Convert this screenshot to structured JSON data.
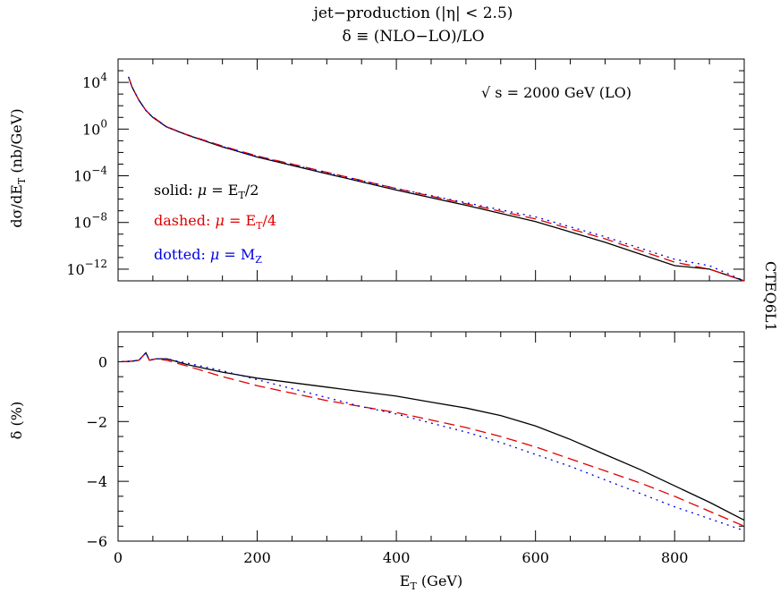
{
  "chart_data": [
    {
      "type": "line",
      "title_line1": "jet−production (|η| < 2.5)",
      "title_line2": "δ ≡ (NLO−LO)/LO",
      "ylabel": "dσ/dE",
      "ylabel_sub": "T",
      "ylabel_unit": " (nb/GeV)",
      "annotation": "√ s = 2000 GeV (LO)",
      "side_label": "CTEQ6L1",
      "yscale": "log",
      "xlim": [
        0,
        900
      ],
      "ylim": [
        1e-13,
        1000000.0
      ],
      "yticks": [
        {
          "value": 10000.0,
          "mant": "10",
          "exp": "4"
        },
        {
          "value": 1.0,
          "mant": "10",
          "exp": "0"
        },
        {
          "value": 0.0001,
          "mant": "10",
          "exp": "−4"
        },
        {
          "value": 1e-08,
          "mant": "10",
          "exp": "−8"
        },
        {
          "value": 1e-12,
          "mant": "10",
          "exp": "−12"
        }
      ],
      "legend": [
        {
          "prefix": "solid: ",
          "mu": "μ",
          "eq": " = E",
          "sub": "T",
          "suffix": "/2",
          "color": "#000000"
        },
        {
          "prefix": "dashed: ",
          "mu": "μ",
          "eq": " = E",
          "sub": "T",
          "suffix": "/4",
          "color": "#e00000"
        },
        {
          "prefix": "dotted: ",
          "mu": "μ",
          "eq": " = M",
          "sub": "Z",
          "suffix": "",
          "color": "#0000e0"
        }
      ],
      "series": [
        {
          "style": "solid",
          "color": "#000000",
          "x": [
            15,
            20,
            30,
            40,
            50,
            70,
            100,
            150,
            200,
            300,
            400,
            500,
            600,
            700,
            800,
            850,
            900
          ],
          "y": [
            30000.0,
            4000,
            300,
            40,
            10,
            1.5,
            0.3,
            0.03,
            0.004,
            0.00015,
            6e-06,
            3e-07,
            1.2e-08,
            2e-10,
            2e-12,
            1e-12,
            4e-14
          ]
        },
        {
          "style": "dashed",
          "color": "#e00000",
          "x": [
            15,
            20,
            30,
            40,
            50,
            70,
            100,
            150,
            200,
            300,
            400,
            500,
            600,
            700,
            800,
            850,
            900
          ],
          "y": [
            30000.0,
            4000,
            300,
            40,
            11,
            1.6,
            0.32,
            0.035,
            0.005,
            0.0002,
            8e-06,
            4e-07,
            2e-08,
            4e-10,
            4e-12,
            1e-12,
            4e-14
          ]
        },
        {
          "style": "dotted",
          "color": "#0000e0",
          "x": [
            15,
            20,
            30,
            40,
            50,
            70,
            100,
            150,
            200,
            300,
            400,
            500,
            600,
            700,
            800,
            850,
            900
          ],
          "y": [
            30000.0,
            4000,
            300,
            40,
            10,
            1.5,
            0.3,
            0.032,
            0.0045,
            0.00018,
            8e-06,
            5e-07,
            3e-08,
            6e-10,
            7e-12,
            2e-12,
            6e-14
          ]
        }
      ]
    },
    {
      "type": "line",
      "xlabel": "E",
      "xlabel_sub": "T",
      "xlabel_unit": " (GeV)",
      "ylabel": "δ (%)",
      "xlim": [
        0,
        900
      ],
      "ylim": [
        -6,
        1
      ],
      "xticks": [
        0,
        200,
        400,
        600,
        800
      ],
      "xtick_labels": [
        "0",
        "200",
        "400",
        "600",
        "800"
      ],
      "yticks": [
        0,
        -2,
        -4,
        -6
      ],
      "ytick_labels": [
        "0",
        "−2",
        "−4",
        "−6"
      ],
      "series": [
        {
          "style": "solid",
          "color": "#000000",
          "x": [
            5,
            20,
            30,
            40,
            45,
            55,
            70,
            100,
            150,
            200,
            250,
            300,
            350,
            400,
            450,
            500,
            550,
            600,
            650,
            700,
            750,
            800,
            850,
            900
          ],
          "y": [
            0,
            0.02,
            0.05,
            0.3,
            0.05,
            0.1,
            0.1,
            -0.1,
            -0.35,
            -0.55,
            -0.7,
            -0.85,
            -1.0,
            -1.15,
            -1.35,
            -1.55,
            -1.8,
            -2.15,
            -2.6,
            -3.1,
            -3.6,
            -4.15,
            -4.7,
            -5.3
          ]
        },
        {
          "style": "dashed",
          "color": "#e00000",
          "x": [
            5,
            20,
            30,
            40,
            45,
            55,
            70,
            100,
            150,
            200,
            250,
            300,
            350,
            400,
            450,
            500,
            550,
            600,
            650,
            700,
            750,
            800,
            850,
            900
          ],
          "y": [
            0,
            0.02,
            0.05,
            0.3,
            0.05,
            0.1,
            0.05,
            -0.15,
            -0.5,
            -0.8,
            -1.05,
            -1.3,
            -1.5,
            -1.7,
            -1.95,
            -2.2,
            -2.5,
            -2.85,
            -3.25,
            -3.65,
            -4.05,
            -4.5,
            -5.0,
            -5.5
          ]
        },
        {
          "style": "dotted",
          "color": "#0000e0",
          "x": [
            5,
            20,
            30,
            40,
            45,
            55,
            70,
            100,
            150,
            200,
            250,
            300,
            350,
            400,
            450,
            500,
            550,
            600,
            650,
            700,
            750,
            800,
            850,
            900
          ],
          "y": [
            0,
            0.02,
            0.05,
            0.3,
            0.05,
            0.1,
            0.1,
            -0.05,
            -0.3,
            -0.6,
            -0.9,
            -1.2,
            -1.5,
            -1.75,
            -2.05,
            -2.35,
            -2.7,
            -3.1,
            -3.5,
            -3.95,
            -4.4,
            -4.85,
            -5.25,
            -5.65
          ]
        }
      ]
    }
  ]
}
